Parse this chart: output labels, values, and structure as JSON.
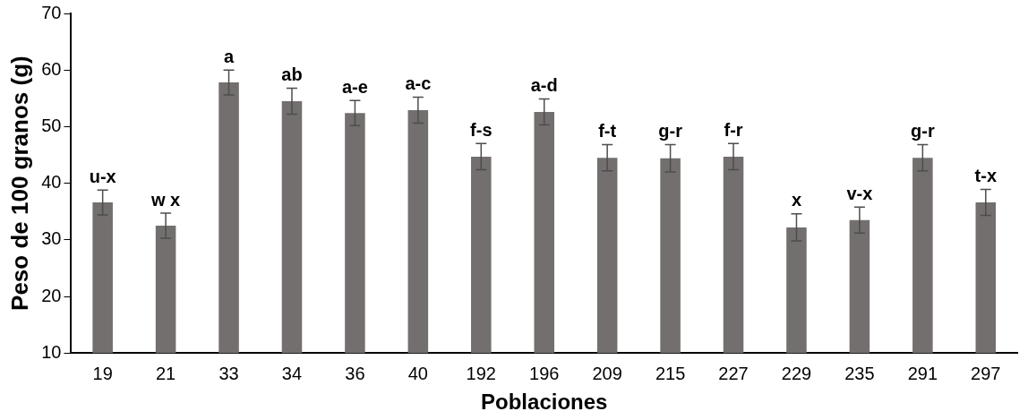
{
  "chart_data": {
    "type": "bar",
    "xlabel": "Poblaciones",
    "ylabel": "Peso de 100 granos (g)",
    "categories": [
      "19",
      "21",
      "33",
      "34",
      "36",
      "40",
      "192",
      "196",
      "209",
      "215",
      "227",
      "229",
      "235",
      "291",
      "297"
    ],
    "values": [
      36.6,
      32.5,
      57.8,
      54.5,
      52.4,
      52.9,
      44.7,
      52.6,
      44.5,
      44.4,
      44.7,
      32.2,
      33.5,
      44.5,
      36.6
    ],
    "errors": [
      2.2,
      2.2,
      2.2,
      2.3,
      2.2,
      2.3,
      2.3,
      2.3,
      2.3,
      2.4,
      2.3,
      2.4,
      2.3,
      2.3,
      2.3
    ],
    "color": "#736f6e",
    "ylim": [
      10,
      70
    ],
    "yticks": [
      10,
      20,
      30,
      40,
      50,
      60,
      70
    ],
    "grid": false,
    "legend": false,
    "annotations": [
      {
        "text": "u-x",
        "x": "19",
        "y": 38.8
      },
      {
        "text": "w x",
        "x": "21",
        "y": 34.7
      },
      {
        "text": "a",
        "x": "33",
        "y": 60.0
      },
      {
        "text": "ab",
        "x": "34",
        "y": 56.8
      },
      {
        "text": "a-e",
        "x": "36",
        "y": 54.6
      },
      {
        "text": "a-c",
        "x": "40",
        "y": 55.2
      },
      {
        "text": "f-s",
        "x": "192",
        "y": 47.0
      },
      {
        "text": "a-d",
        "x": "196",
        "y": 54.9
      },
      {
        "text": "f-t",
        "x": "209",
        "y": 46.8
      },
      {
        "text": "g-r",
        "x": "215",
        "y": 46.8
      },
      {
        "text": "f-r",
        "x": "227",
        "y": 47.0
      },
      {
        "text": "x",
        "x": "229",
        "y": 34.6
      },
      {
        "text": "v-x",
        "x": "235",
        "y": 35.8
      },
      {
        "text": "g-r",
        "x": "291",
        "y": 46.8
      },
      {
        "text": "t-x",
        "x": "297",
        "y": 38.9
      }
    ]
  }
}
